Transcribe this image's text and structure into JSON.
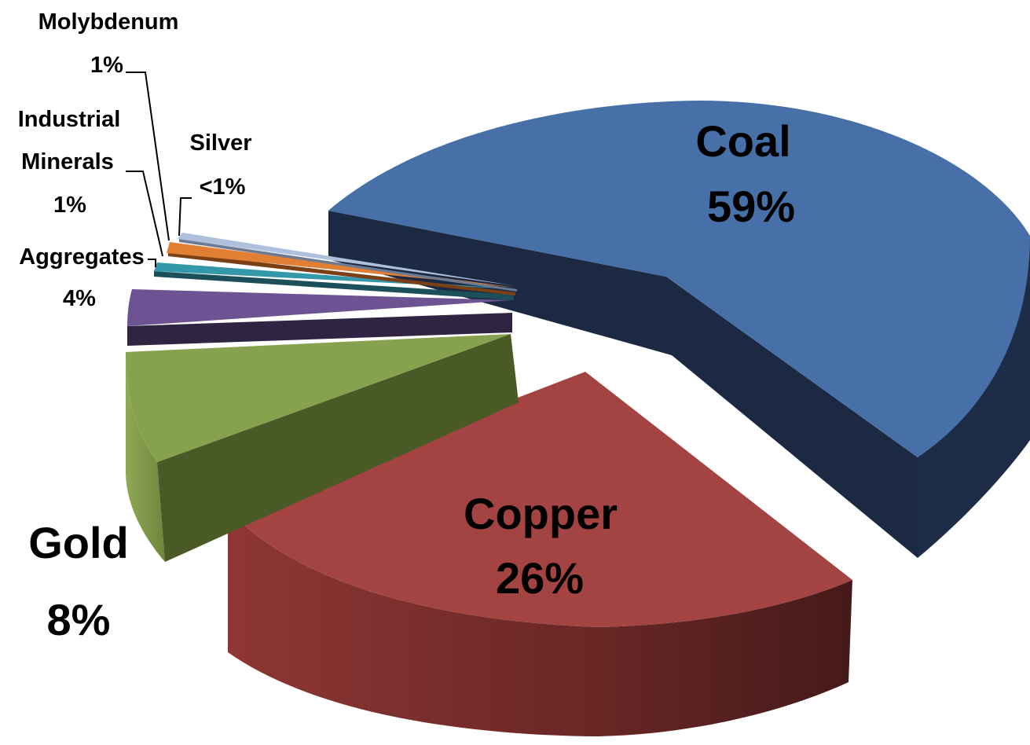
{
  "chart_data": {
    "type": "pie",
    "title": "",
    "slices": [
      {
        "name": "Coal",
        "label": "Coal",
        "value_label": "59%",
        "value": 59,
        "color": "#4670A7",
        "side": "#1D2D47"
      },
      {
        "name": "Copper",
        "label": "Copper",
        "value_label": "26%",
        "value": 26,
        "color": "#A44442",
        "side": "#5E2120"
      },
      {
        "name": "Gold",
        "label": "Gold",
        "value_label": "8%",
        "value": 8,
        "color": "#87A24E",
        "side": "#4A5A27"
      },
      {
        "name": "Aggregates",
        "label": "Aggregates",
        "value_label": "4%",
        "value": 4,
        "color": "#6D5393",
        "side": "#2F2441"
      },
      {
        "name": "Industrial Minerals",
        "label": [
          "Industrial",
          "Minerals"
        ],
        "value_label": "1%",
        "value": 1.2,
        "color": "#3498AB",
        "side": "#1B4F59"
      },
      {
        "name": "Molybdenum",
        "label": "Molybdenum",
        "value_label": "1%",
        "value": 1,
        "color": "#E17F34",
        "side": "#7A3F14"
      },
      {
        "name": "Silver",
        "label": "Silver",
        "value_label": "<1%",
        "value": 0.8,
        "color": "#AFC0DD",
        "side": "#6C7A94"
      }
    ],
    "legend": "none",
    "style": "3d-exploded"
  }
}
